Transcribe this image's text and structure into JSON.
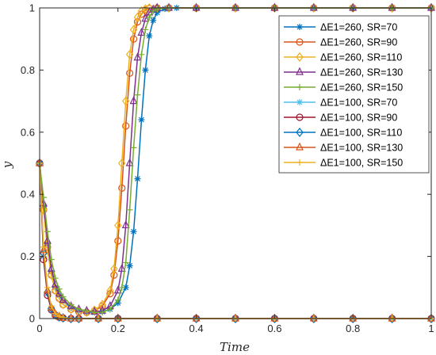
{
  "chart_data": {
    "type": "line",
    "xlabel": "Time",
    "ylabel": "y",
    "xlim": [
      0,
      1
    ],
    "ylim": [
      0,
      1
    ],
    "xticks": [
      "0",
      "0.2",
      "0.4",
      "0.6",
      "0.8",
      "1"
    ],
    "yticks": [
      "0",
      "0.2",
      "0.4",
      "0.6",
      "0.8",
      "1"
    ],
    "legend_position": "top-right",
    "grid": false,
    "series": [
      {
        "name": "ΔE1=260, SR=70",
        "color": "#0072BD",
        "marker": "asterisk",
        "x": [
          0,
          0.01,
          0.02,
          0.03,
          0.04,
          0.05,
          0.06,
          0.08,
          0.1,
          0.12,
          0.14,
          0.16,
          0.18,
          0.2,
          0.22,
          0.23,
          0.24,
          0.25,
          0.26,
          0.27,
          0.28,
          0.29,
          0.3,
          0.32,
          0.35,
          0.4,
          0.5,
          0.6,
          0.7,
          0.8,
          0.9,
          1.0
        ],
        "y": [
          0.5,
          0.36,
          0.24,
          0.15,
          0.1,
          0.075,
          0.055,
          0.035,
          0.025,
          0.02,
          0.02,
          0.022,
          0.03,
          0.05,
          0.1,
          0.17,
          0.28,
          0.45,
          0.64,
          0.8,
          0.91,
          0.96,
          0.985,
          0.997,
          1,
          1,
          1,
          1,
          1,
          1,
          1,
          1
        ]
      },
      {
        "name": "ΔE1=260, SR=90",
        "color": "#D95319",
        "marker": "circle",
        "x": [
          0,
          0.01,
          0.02,
          0.03,
          0.04,
          0.05,
          0.06,
          0.08,
          0.1,
          0.12,
          0.14,
          0.16,
          0.18,
          0.19,
          0.2,
          0.21,
          0.22,
          0.23,
          0.24,
          0.25,
          0.26,
          0.27,
          0.28,
          0.3,
          0.33,
          0.4,
          0.5,
          0.6,
          0.7,
          0.8,
          0.9,
          1.0
        ],
        "y": [
          0.5,
          0.35,
          0.23,
          0.14,
          0.09,
          0.065,
          0.045,
          0.03,
          0.022,
          0.02,
          0.025,
          0.04,
          0.08,
          0.14,
          0.25,
          0.42,
          0.62,
          0.79,
          0.9,
          0.955,
          0.98,
          0.993,
          0.998,
          1,
          1,
          1,
          1,
          1,
          1,
          1,
          1,
          1
        ]
      },
      {
        "name": "ΔE1=260, SR=110",
        "color": "#EDB120",
        "marker": "diamond",
        "x": [
          0,
          0.01,
          0.02,
          0.03,
          0.04,
          0.05,
          0.06,
          0.08,
          0.1,
          0.12,
          0.14,
          0.16,
          0.18,
          0.19,
          0.2,
          0.21,
          0.22,
          0.23,
          0.24,
          0.25,
          0.26,
          0.27,
          0.28,
          0.3,
          0.33,
          0.4,
          0.5,
          0.6,
          0.7,
          0.8,
          0.9,
          1.0
        ],
        "y": [
          0.5,
          0.35,
          0.22,
          0.14,
          0.09,
          0.065,
          0.045,
          0.03,
          0.022,
          0.02,
          0.027,
          0.045,
          0.09,
          0.16,
          0.3,
          0.5,
          0.7,
          0.85,
          0.93,
          0.97,
          0.99,
          0.997,
          1,
          1,
          1,
          1,
          1,
          1,
          1,
          1,
          1,
          1
        ]
      },
      {
        "name": "ΔE1=260, SR=130",
        "color": "#7E2F8E",
        "marker": "triangle",
        "x": [
          0,
          0.01,
          0.02,
          0.03,
          0.04,
          0.05,
          0.06,
          0.08,
          0.1,
          0.12,
          0.14,
          0.16,
          0.18,
          0.2,
          0.21,
          0.22,
          0.23,
          0.24,
          0.25,
          0.26,
          0.27,
          0.28,
          0.29,
          0.3,
          0.33,
          0.4,
          0.5,
          0.6,
          0.7,
          0.8,
          0.9,
          1.0
        ],
        "y": [
          0.5,
          0.37,
          0.25,
          0.16,
          0.11,
          0.08,
          0.06,
          0.04,
          0.03,
          0.025,
          0.022,
          0.025,
          0.04,
          0.09,
          0.16,
          0.3,
          0.5,
          0.7,
          0.84,
          0.92,
          0.965,
          0.985,
          0.995,
          1,
          1,
          1,
          1,
          1,
          1,
          1,
          1,
          1
        ]
      },
      {
        "name": "ΔE1=260, SR=150",
        "color": "#77AC30",
        "marker": "plus",
        "x": [
          0,
          0.01,
          0.02,
          0.03,
          0.04,
          0.05,
          0.06,
          0.08,
          0.1,
          0.12,
          0.14,
          0.16,
          0.18,
          0.2,
          0.21,
          0.22,
          0.23,
          0.24,
          0.25,
          0.26,
          0.27,
          0.28,
          0.29,
          0.3,
          0.33,
          0.4,
          0.5,
          0.6,
          0.7,
          0.8,
          0.9,
          1.0
        ],
        "y": [
          0.5,
          0.39,
          0.28,
          0.19,
          0.13,
          0.095,
          0.07,
          0.045,
          0.03,
          0.025,
          0.02,
          0.02,
          0.03,
          0.06,
          0.1,
          0.18,
          0.35,
          0.55,
          0.72,
          0.85,
          0.93,
          0.97,
          0.99,
          0.997,
          1,
          1,
          1,
          1,
          1,
          1,
          1,
          1
        ]
      },
      {
        "name": "ΔE1=100, SR=70",
        "color": "#4DBEEE",
        "marker": "asterisk",
        "x": [
          0,
          0.01,
          0.02,
          0.03,
          0.04,
          0.05,
          0.06,
          0.08,
          0.1,
          0.15,
          0.2,
          0.3,
          0.4,
          0.5,
          0.6,
          0.7,
          0.8,
          0.9,
          1.0
        ],
        "y": [
          0.5,
          0.2,
          0.08,
          0.03,
          0.012,
          0.005,
          0.002,
          0,
          0,
          0,
          0,
          0,
          0,
          0,
          0,
          0,
          0,
          0,
          0
        ]
      },
      {
        "name": "ΔE1=100, SR=90",
        "color": "#A2142F",
        "marker": "circle",
        "x": [
          0,
          0.01,
          0.02,
          0.03,
          0.04,
          0.05,
          0.06,
          0.08,
          0.1,
          0.15,
          0.2,
          0.3,
          0.4,
          0.5,
          0.6,
          0.7,
          0.8,
          0.9,
          1.0
        ],
        "y": [
          0.5,
          0.19,
          0.075,
          0.028,
          0.011,
          0.004,
          0.002,
          0,
          0,
          0,
          0,
          0,
          0,
          0,
          0,
          0,
          0,
          0,
          0
        ]
      },
      {
        "name": "ΔE1=100, SR=110",
        "color": "#0072BD",
        "marker": "diamond",
        "x": [
          0,
          0.01,
          0.02,
          0.03,
          0.04,
          0.05,
          0.06,
          0.08,
          0.1,
          0.15,
          0.2,
          0.3,
          0.4,
          0.5,
          0.6,
          0.7,
          0.8,
          0.9,
          1.0
        ],
        "y": [
          0.5,
          0.21,
          0.085,
          0.033,
          0.013,
          0.005,
          0.002,
          0,
          0,
          0,
          0,
          0,
          0,
          0,
          0,
          0,
          0,
          0,
          0
        ]
      },
      {
        "name": "ΔE1=100, SR=130",
        "color": "#D95319",
        "marker": "triangle",
        "x": [
          0,
          0.01,
          0.02,
          0.03,
          0.04,
          0.05,
          0.06,
          0.08,
          0.1,
          0.15,
          0.2,
          0.3,
          0.4,
          0.5,
          0.6,
          0.7,
          0.8,
          0.9,
          1.0
        ],
        "y": [
          0.5,
          0.22,
          0.09,
          0.035,
          0.014,
          0.006,
          0.002,
          0,
          0,
          0,
          0,
          0,
          0,
          0,
          0,
          0,
          0,
          0,
          0
        ]
      },
      {
        "name": "ΔE1=100, SR=150",
        "color": "#EDB120",
        "marker": "plus",
        "x": [
          0,
          0.01,
          0.02,
          0.03,
          0.04,
          0.05,
          0.06,
          0.08,
          0.1,
          0.15,
          0.2,
          0.3,
          0.4,
          0.5,
          0.6,
          0.7,
          0.8,
          0.9,
          1.0
        ],
        "y": [
          0.5,
          0.23,
          0.1,
          0.04,
          0.016,
          0.007,
          0.003,
          0,
          0,
          0,
          0,
          0,
          0,
          0,
          0,
          0,
          0,
          0,
          0
        ]
      }
    ]
  }
}
